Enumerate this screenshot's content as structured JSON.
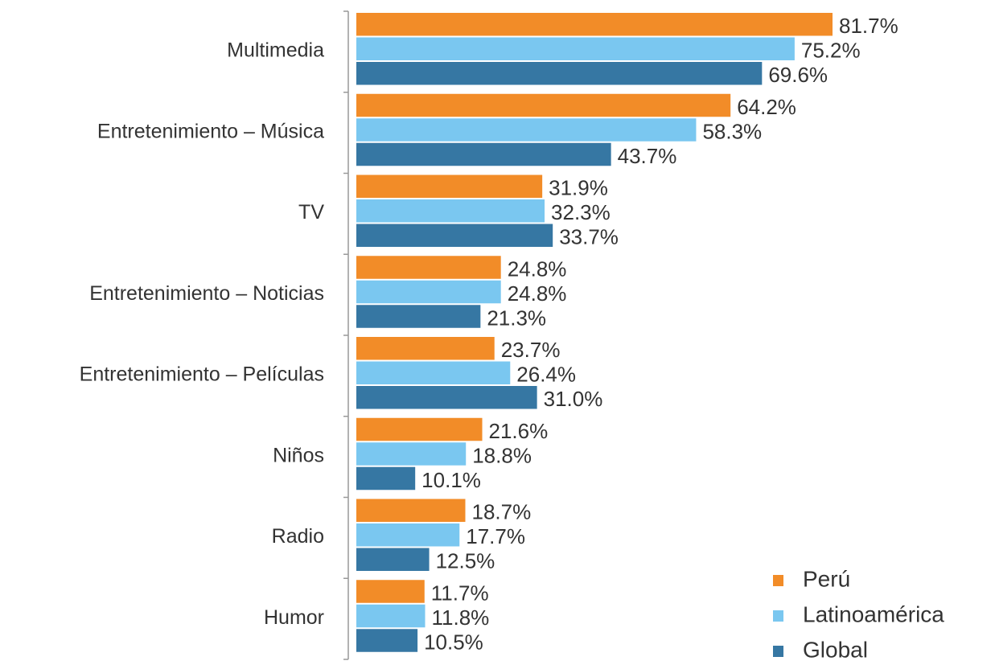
{
  "chart_data": {
    "type": "hbar",
    "categories": [
      "Multimedia",
      "Entretenimiento – Música",
      "TV",
      "Entretenimiento – Noticias",
      "Entretenimiento – Películas",
      "Niños",
      "Radio",
      "Humor"
    ],
    "series": [
      {
        "name": "Perú",
        "color": "#f28c28",
        "values": [
          81.7,
          64.2,
          31.9,
          24.8,
          23.7,
          21.6,
          18.7,
          11.7
        ],
        "value_labels": [
          "81.7%",
          "64.2%",
          "31.9%",
          "24.8%",
          "23.7%",
          "21.6%",
          "18.7%",
          "11.7%"
        ]
      },
      {
        "name": "Latinoamérica",
        "color": "#7ac7f0",
        "values": [
          75.2,
          58.3,
          32.3,
          24.8,
          26.4,
          18.8,
          17.7,
          11.8
        ],
        "value_labels": [
          "75.2%",
          "58.3%",
          "32.3%",
          "24.8%",
          "26.4%",
          "18.8%",
          "17.7%",
          "11.8%"
        ]
      },
      {
        "name": "Global",
        "color": "#3677a3",
        "values": [
          69.6,
          43.7,
          33.7,
          21.3,
          31.0,
          10.1,
          12.5,
          10.5
        ],
        "value_labels": [
          "69.6%",
          "43.7%",
          "33.7%",
          "21.3%",
          "31.0%",
          "10.1%",
          "12.5%",
          "10.5%"
        ]
      }
    ]
  }
}
